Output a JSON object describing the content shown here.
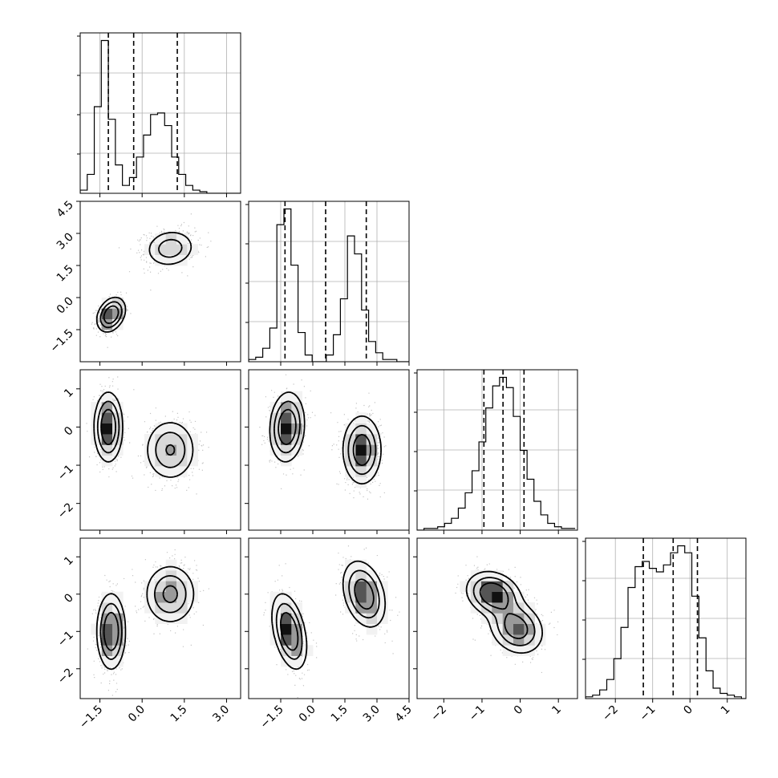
{
  "chart_data": {
    "type": "corner",
    "title": "",
    "colors": {
      "line": "#000000",
      "grid": "#b0b0b0",
      "points": "#555555"
    },
    "grid": true,
    "parameters": [
      {
        "ticks": [
          "−1.5",
          "0.0",
          "1.5",
          "3.0"
        ],
        "tick_values": [
          -1.5,
          0.0,
          1.5,
          3.0
        ],
        "range": [
          -2.2,
          3.5
        ],
        "quantiles": [
          -1.2,
          -0.3,
          1.25
        ],
        "hist": {
          "bin_start": -2.2,
          "bin_width": 0.25,
          "counts": [
            2,
            12,
            55,
            97,
            47,
            18,
            5,
            10,
            23,
            37,
            50,
            51,
            43,
            23,
            12,
            5,
            2,
            1,
            0,
            0,
            0,
            0,
            0
          ]
        }
      },
      {
        "ticks": [
          "−1.5",
          "0.0",
          "1.5",
          "3.0",
          "4.5"
        ],
        "tick_values": [
          -1.5,
          0.0,
          1.5,
          3.0,
          4.5
        ],
        "range": [
          -3.0,
          4.5
        ],
        "quantiles": [
          -1.3,
          0.6,
          2.5
        ],
        "hist": {
          "bin_start": -3.0,
          "bin_width": 0.33,
          "counts": [
            1,
            2,
            6,
            15,
            61,
            68,
            43,
            13,
            3,
            0,
            0,
            3,
            12,
            28,
            56,
            48,
            23,
            9,
            4,
            1,
            1,
            0,
            0
          ]
        }
      },
      {
        "ticks": [
          "−2",
          "−1",
          "0",
          "1"
        ],
        "tick_values": [
          -2,
          -1,
          0,
          1
        ],
        "range": [
          -2.7,
          1.5
        ],
        "quantiles": [
          -0.95,
          -0.45,
          0.1
        ],
        "hist": {
          "bin_start": -2.7,
          "bin_width": 0.18,
          "counts": [
            0,
            1,
            1,
            2,
            4,
            7,
            13,
            22,
            35,
            52,
            72,
            85,
            90,
            84,
            67,
            47,
            30,
            17,
            9,
            4,
            2,
            1,
            1
          ]
        }
      },
      {
        "ticks": [
          "−2",
          "−1",
          "0",
          "1"
        ],
        "tick_values": [
          -2,
          -1,
          0,
          1
        ],
        "range": [
          -2.8,
          1.5
        ],
        "quantiles": [
          -1.25,
          -0.45,
          0.2
        ],
        "hist": {
          "bin_start": -2.8,
          "bin_width": 0.19,
          "counts": [
            1,
            2,
            5,
            11,
            23,
            41,
            64,
            76,
            79,
            75,
            73,
            77,
            84,
            88,
            84,
            59,
            35,
            16,
            6,
            3,
            2,
            1,
            0
          ]
        }
      }
    ],
    "pairs": [
      {
        "row": 1,
        "col": 0,
        "modes": [
          {
            "mx": -1.1,
            "my": -0.8,
            "sx": 0.25,
            "sy": 0.4,
            "rho": 0.3,
            "w": 0.5
          },
          {
            "mx": 1.0,
            "my": 2.3,
            "sx": 0.45,
            "sy": 0.45,
            "rho": 0.1,
            "w": 0.5
          }
        ]
      },
      {
        "row": 2,
        "col": 0,
        "modes": [
          {
            "mx": -1.2,
            "my": 0.0,
            "sx": 0.25,
            "sy": 0.45,
            "rho": 0.0,
            "w": 0.5
          },
          {
            "mx": 1.0,
            "my": -0.6,
            "sx": 0.45,
            "sy": 0.4,
            "rho": 0.0,
            "w": 0.5
          }
        ]
      },
      {
        "row": 3,
        "col": 0,
        "modes": [
          {
            "mx": -1.1,
            "my": -1.0,
            "sx": 0.25,
            "sy": 0.5,
            "rho": 0.0,
            "w": 0.5
          },
          {
            "mx": 1.0,
            "my": 0.0,
            "sx": 0.45,
            "sy": 0.4,
            "rho": 0.0,
            "w": 0.5
          }
        ]
      },
      {
        "row": 2,
        "col": 1,
        "modes": [
          {
            "mx": -1.2,
            "my": 0.0,
            "sx": 0.4,
            "sy": 0.45,
            "rho": 0.1,
            "w": 0.5
          },
          {
            "mx": 2.3,
            "my": -0.6,
            "sx": 0.45,
            "sy": 0.45,
            "rho": 0.0,
            "w": 0.5
          }
        ]
      },
      {
        "row": 3,
        "col": 1,
        "modes": [
          {
            "mx": -1.1,
            "my": -1.0,
            "sx": 0.4,
            "sy": 0.5,
            "rho": -0.4,
            "w": 0.5
          },
          {
            "mx": 2.4,
            "my": 0.0,
            "sx": 0.5,
            "sy": 0.45,
            "rho": -0.3,
            "w": 0.5
          }
        ]
      },
      {
        "row": 3,
        "col": 2,
        "modes": [
          {
            "mx": -0.7,
            "my": 0.0,
            "sx": 0.35,
            "sy": 0.3,
            "rho": -0.2,
            "w": 0.5
          },
          {
            "mx": -0.1,
            "my": -0.9,
            "sx": 0.35,
            "sy": 0.35,
            "rho": -0.2,
            "w": 0.5
          }
        ]
      }
    ]
  }
}
